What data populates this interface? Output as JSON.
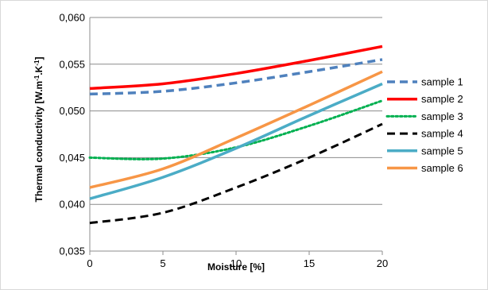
{
  "chart_data": {
    "type": "line",
    "title": "",
    "xlabel": "Moisture [%]",
    "ylabel_main": "Thermal conductivity [W.m",
    "ylabel_sup1": "-1",
    "ylabel_mid": ".K",
    "ylabel_sup2": "-1",
    "ylabel_end": "]",
    "xlim": [
      0,
      20
    ],
    "ylim": [
      0.035,
      0.06
    ],
    "x_ticks": [
      0,
      5,
      10,
      15,
      20
    ],
    "x_tick_labels": [
      "0",
      "5",
      "10",
      "15",
      "20"
    ],
    "y_ticks": [
      0.035,
      0.04,
      0.045,
      0.05,
      0.055,
      0.06
    ],
    "y_tick_labels": [
      "0,035",
      "0,040",
      "0,045",
      "0,050",
      "0,055",
      "0,060"
    ],
    "grid": "horizontal",
    "legend_position": "right",
    "x": [
      0,
      5,
      10,
      15,
      20
    ],
    "series": [
      {
        "name": "sample 1",
        "color": "#4F81BD",
        "dash": "dashed",
        "width": 3.5,
        "values": [
          0.0518,
          0.0521,
          0.053,
          0.0542,
          0.0555
        ]
      },
      {
        "name": "sample 2",
        "color": "#FF0000",
        "dash": "solid",
        "width": 3.5,
        "values": [
          0.0524,
          0.0529,
          0.054,
          0.0554,
          0.0569
        ]
      },
      {
        "name": "sample 3",
        "color": "#00B050",
        "dash": "dotted",
        "width": 3,
        "values": [
          0.045,
          0.0449,
          0.0461,
          0.0484,
          0.0511
        ]
      },
      {
        "name": "sample 4",
        "color": "#000000",
        "dash": "dashed",
        "width": 3,
        "values": [
          0.038,
          0.0391,
          0.0418,
          0.045,
          0.0486
        ]
      },
      {
        "name": "sample 5",
        "color": "#4BACC6",
        "dash": "solid",
        "width": 3.5,
        "values": [
          0.0406,
          0.0429,
          0.046,
          0.0495,
          0.0529
        ]
      },
      {
        "name": "sample 6",
        "color": "#F79646",
        "dash": "solid",
        "width": 3.5,
        "values": [
          0.0418,
          0.0438,
          0.0471,
          0.0506,
          0.0542
        ]
      }
    ]
  }
}
